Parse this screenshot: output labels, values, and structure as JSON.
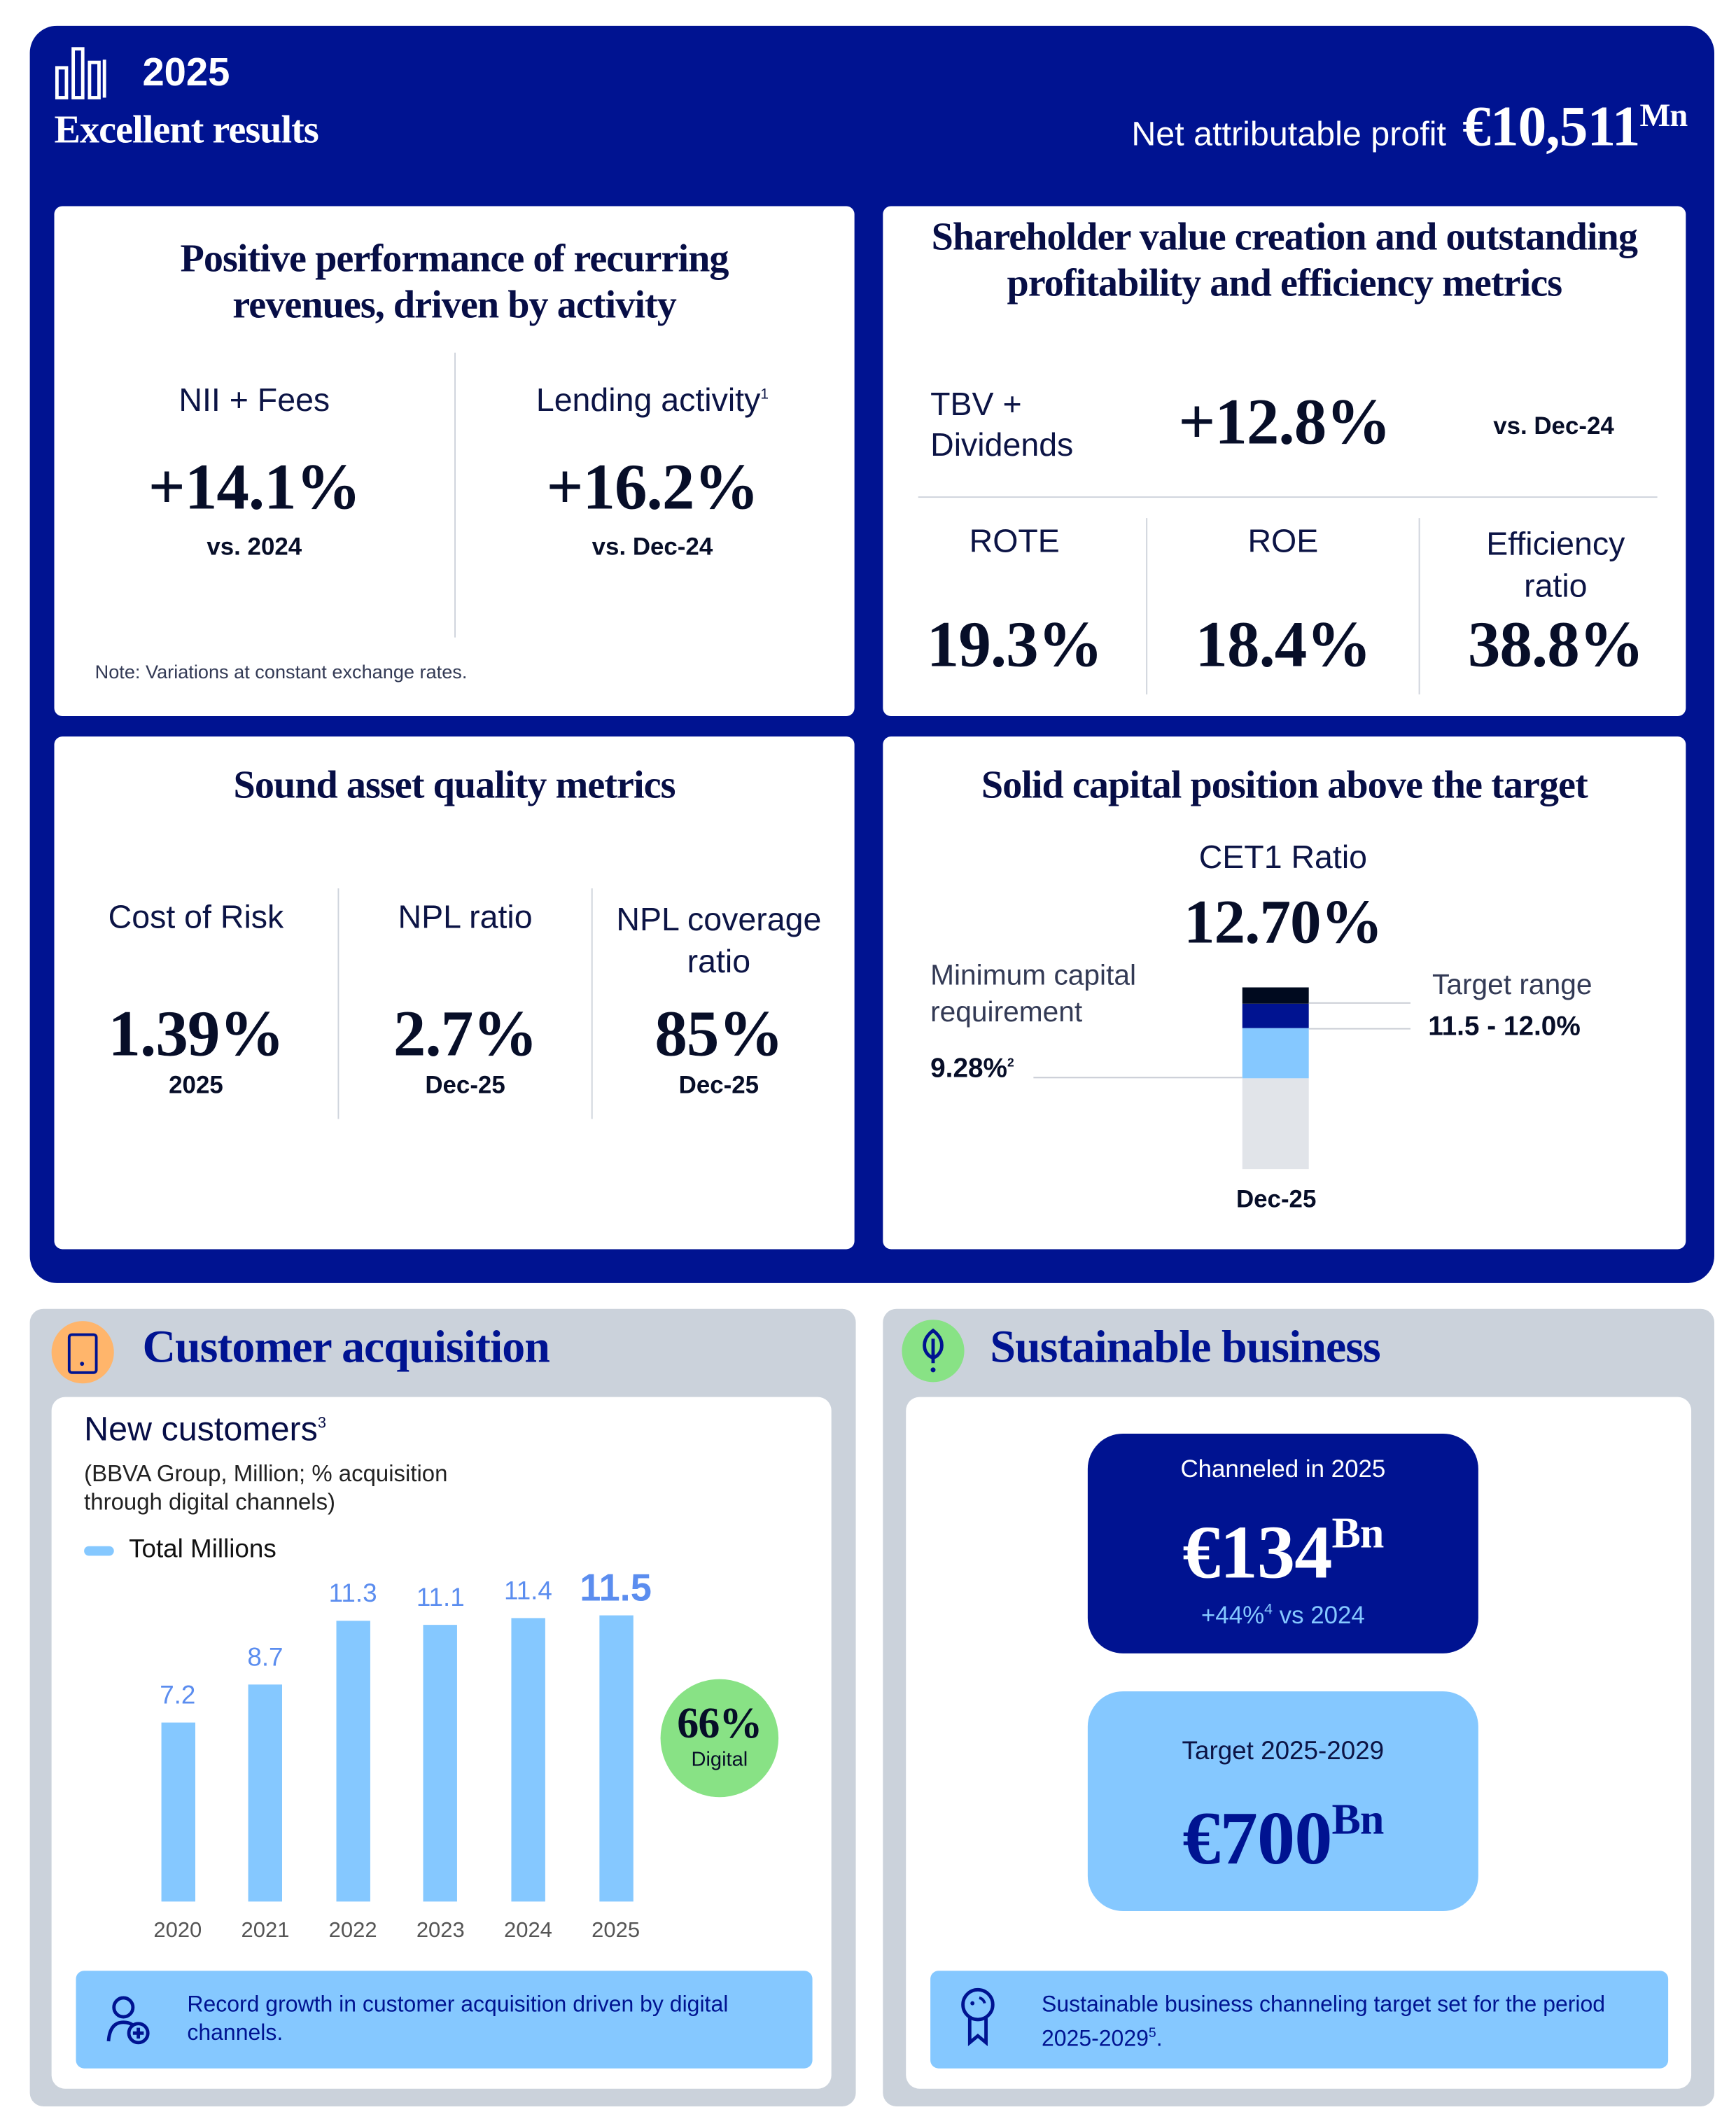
{
  "header": {
    "icon": "bar-chart-icon",
    "year": "2025",
    "title": "Excellent results",
    "profit_label": "Net attributable profit",
    "profit_value": "€10,511",
    "profit_unit": "Mn"
  },
  "revenues": {
    "title": "Positive performance of recurring revenues, driven by activity",
    "metrics": [
      {
        "label": "NII + Fees",
        "sup": "",
        "value": "+14.1%",
        "sub": "vs. 2024"
      },
      {
        "label": "Lending activity",
        "sup": "1",
        "value": "+16.2%",
        "sub": "vs. Dec-24"
      }
    ],
    "note": "Note: Variations at constant exchange rates."
  },
  "shareholder": {
    "title": "Shareholder value creation and outstanding profitability and efficiency metrics",
    "tbv_label": "TBV + Dividends",
    "tbv_value": "+12.8%",
    "tbv_sub": "vs. Dec-24",
    "metrics": [
      {
        "label": "ROTE",
        "value": "19.3%"
      },
      {
        "label": "ROE",
        "value": "18.4%"
      },
      {
        "label": "Efficiency ratio",
        "value": "38.8%"
      }
    ]
  },
  "asset_quality": {
    "title": "Sound asset quality metrics",
    "metrics": [
      {
        "label": "Cost of Risk",
        "value": "1.39%",
        "sub": "2025"
      },
      {
        "label": "NPL ratio",
        "value": "2.7%",
        "sub": "Dec-25"
      },
      {
        "label": "NPL coverage ratio",
        "value": "85%",
        "sub": "Dec-25"
      }
    ]
  },
  "capital": {
    "title": "Solid capital position above the target",
    "cet1_label": "CET1 Ratio",
    "cet1_value": "12.70%",
    "min_label": "Minimum capital requirement",
    "min_value": "9.28%",
    "min_sup": "2",
    "target_label": "Target range",
    "target_value": "11.5 - 12.0%",
    "x_label": "Dec-25",
    "colors": {
      "base": "#e1e4e9",
      "to_min": "#85c8ff",
      "to_target": "#001391",
      "above_target": "#000a1f"
    }
  },
  "customer": {
    "title": "Customer acquisition",
    "icon": "smartphone-icon",
    "chart_title": "New customers",
    "chart_title_sup": "3",
    "chart_subtitle": "(BBVA Group, Million; % acquisition through digital channels)",
    "legend": "Total Millions",
    "digital_value": "66%",
    "digital_label": "Digital",
    "footer_icon": "user-add-icon",
    "footer_text": "Record growth in customer acquisition driven by digital channels."
  },
  "chart_data": {
    "type": "bar",
    "categories": [
      "2020",
      "2021",
      "2022",
      "2023",
      "2024",
      "2025"
    ],
    "series": [
      {
        "name": "Total Millions",
        "values": [
          7.2,
          8.7,
          11.3,
          11.1,
          11.4,
          11.5
        ]
      }
    ],
    "labels": [
      "7.2",
      "8.7",
      "11.3",
      "11.1",
      "11.4",
      "11.5"
    ],
    "ylim": [
      0,
      11.5
    ],
    "color": "#85c8ff",
    "label_color": "#5b8def",
    "grid": false
  },
  "sustainable": {
    "title": "Sustainable business",
    "icon": "leaf-icon",
    "channeled_label": "Channeled in 2025",
    "channeled_value": "€134",
    "channeled_unit": "Bn",
    "channeled_growth": "+44%",
    "channeled_growth_sup": "4",
    "channeled_growth_suffix": " vs 2024",
    "target_label": "Target 2025-2029",
    "target_value": "€700",
    "target_unit": "Bn",
    "footer_icon": "award-ribbon-icon",
    "footer_text": "Sustainable business channeling target set for the period 2025-2029",
    "footer_sup": "5"
  }
}
